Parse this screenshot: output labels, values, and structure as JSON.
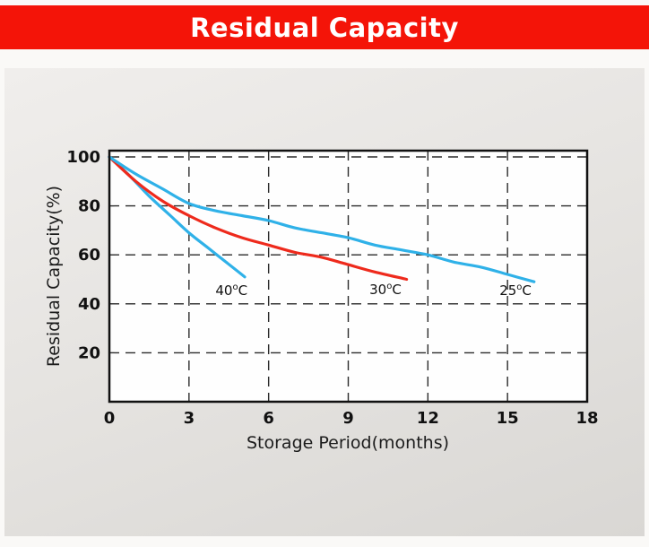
{
  "banner": {
    "title": "Residual Capacity",
    "bg_color": "#f41408",
    "text_color": "#ffffff"
  },
  "chart_data": {
    "type": "line",
    "title": "Residual Capacity",
    "xlabel": "Storage Period(months)",
    "ylabel": "Residual Capacity(%)",
    "x_ticks": [
      0,
      3,
      6,
      9,
      12,
      15,
      18
    ],
    "y_ticks": [
      20,
      40,
      60,
      80,
      100
    ],
    "xlim": [
      0,
      18
    ],
    "ylim": [
      0,
      100
    ],
    "grid": "dashed",
    "legend_position": "inline-labels",
    "colors": {
      "grid": "#2b2b2b",
      "axis_border": "#111111",
      "plot_background": "#fefefe",
      "blue_curve": "#2fb1e8",
      "red_curve": "#ee2a1c"
    },
    "series": [
      {
        "name": "40C",
        "color": "#2fb1e8",
        "label": {
          "base": "40",
          "sup": "o",
          "unit": "C",
          "x": 4.6,
          "y": 43.5
        },
        "points": [
          [
            0,
            100
          ],
          [
            0.7,
            93
          ],
          [
            1.5,
            84
          ],
          [
            2.3,
            76
          ],
          [
            3,
            69
          ],
          [
            3.7,
            63
          ],
          [
            4.4,
            57
          ],
          [
            5.1,
            51
          ]
        ]
      },
      {
        "name": "30C",
        "color": "#ee2a1c",
        "label": {
          "base": "30",
          "sup": "o",
          "unit": "C",
          "x": 10.4,
          "y": 44
        },
        "points": [
          [
            0,
            100
          ],
          [
            1,
            90
          ],
          [
            2,
            82
          ],
          [
            3,
            76
          ],
          [
            4,
            71
          ],
          [
            5,
            67
          ],
          [
            6,
            64
          ],
          [
            7,
            61
          ],
          [
            8,
            59
          ],
          [
            9,
            56
          ],
          [
            10,
            53
          ],
          [
            11.2,
            50
          ]
        ]
      },
      {
        "name": "25C",
        "color": "#2fb1e8",
        "label": {
          "base": "25",
          "sup": "o",
          "unit": "C",
          "x": 15.3,
          "y": 43.5
        },
        "points": [
          [
            0,
            100
          ],
          [
            1,
            93
          ],
          [
            2,
            87
          ],
          [
            3,
            81
          ],
          [
            4,
            78
          ],
          [
            5,
            76
          ],
          [
            6,
            74
          ],
          [
            7,
            71
          ],
          [
            8,
            69
          ],
          [
            9,
            67
          ],
          [
            10,
            64
          ],
          [
            11,
            62
          ],
          [
            12,
            60
          ],
          [
            13,
            57
          ],
          [
            14,
            55
          ],
          [
            15,
            52
          ],
          [
            16,
            49
          ]
        ]
      }
    ]
  }
}
